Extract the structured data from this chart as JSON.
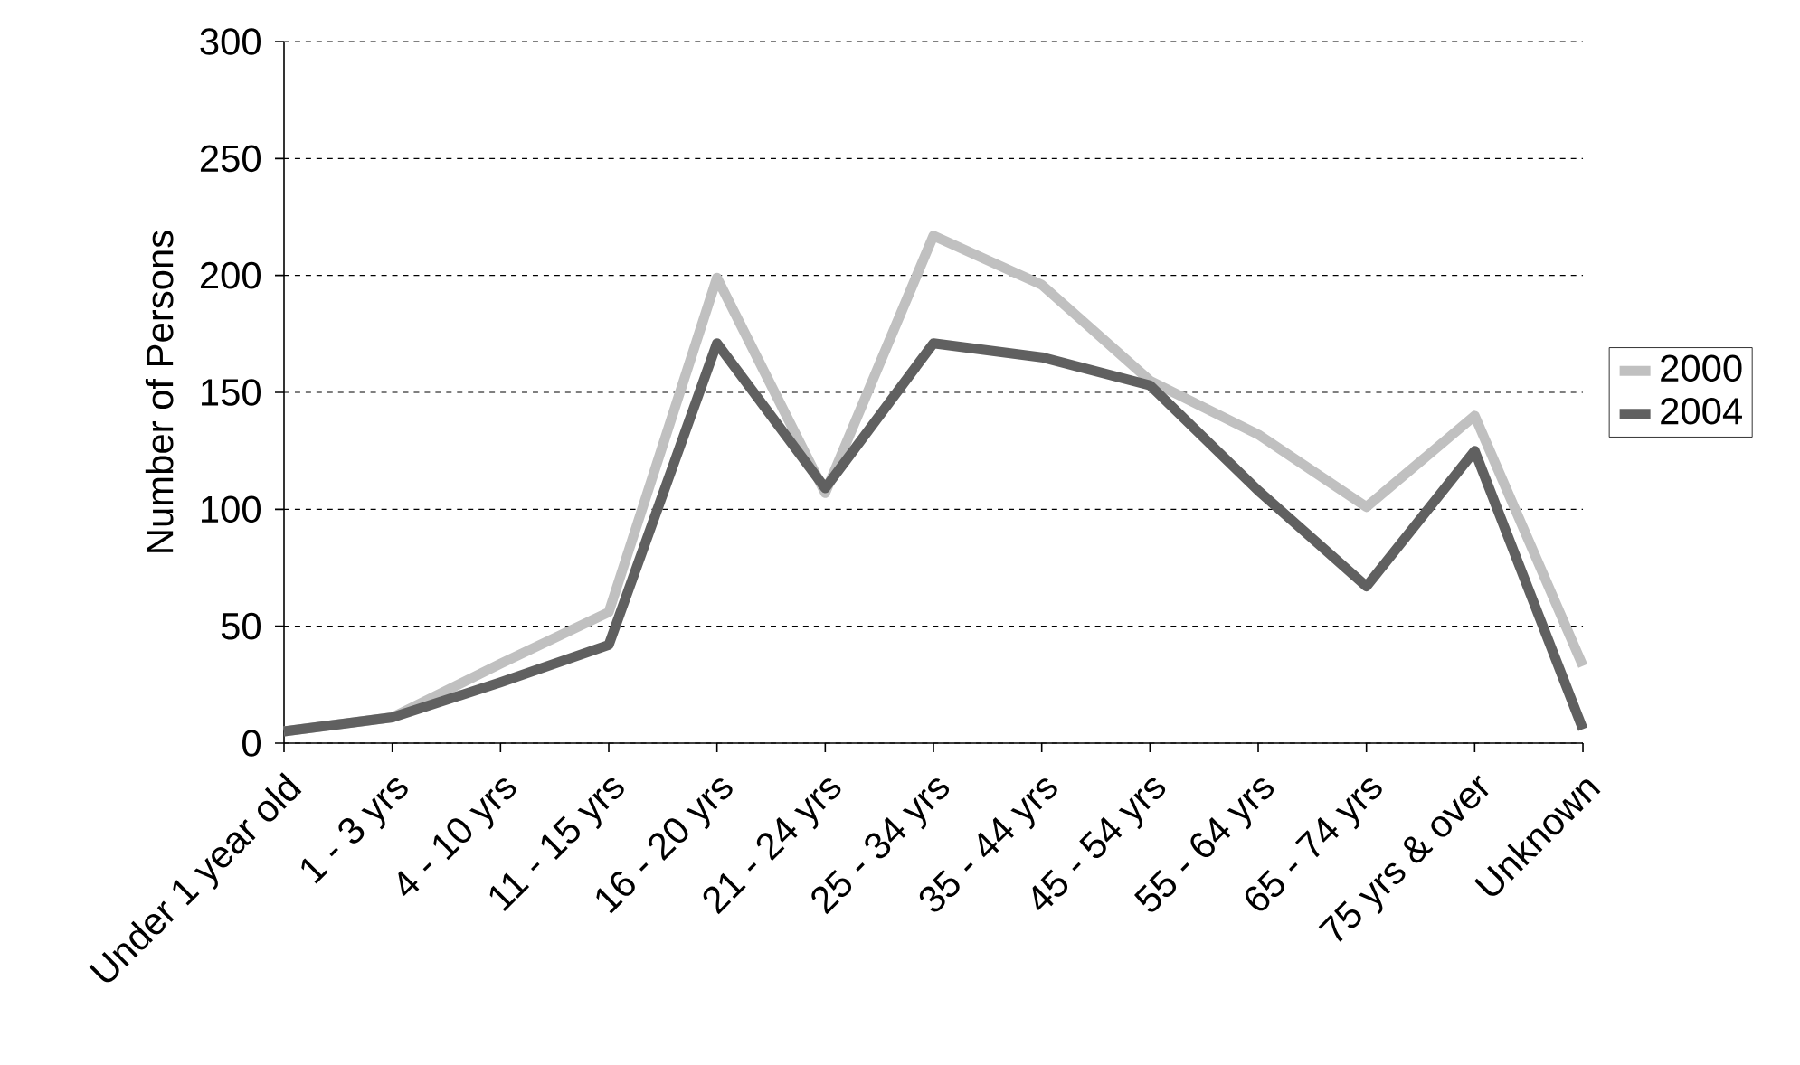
{
  "chart_data": {
    "type": "line",
    "ylabel": "Number of Persons",
    "categories": [
      "Under 1 year old",
      "1 - 3 yrs",
      "4 - 10 yrs",
      "11 - 15 yrs",
      "16 - 20 yrs",
      "21 - 24 yrs",
      "25 - 34 yrs",
      "35 - 44 yrs",
      "45 - 54 yrs",
      "55 - 64 yrs",
      "65 - 74 yrs",
      "75 yrs & over",
      "Unknown"
    ],
    "series": [
      {
        "name": "2000",
        "color": "#c0c0c0",
        "values": [
          5,
          11,
          34,
          56,
          199,
          107,
          217,
          196,
          155,
          132,
          101,
          140,
          33
        ]
      },
      {
        "name": "2004",
        "color": "#606060",
        "values": [
          5,
          11,
          26,
          42,
          171,
          109,
          171,
          165,
          153,
          108,
          67,
          125,
          6
        ]
      }
    ],
    "ylim": [
      0,
      300
    ],
    "yticks": [
      0,
      50,
      100,
      150,
      200,
      250,
      300
    ],
    "grid": "y",
    "legend": "right",
    "marker": "none",
    "line_style": "solid"
  }
}
